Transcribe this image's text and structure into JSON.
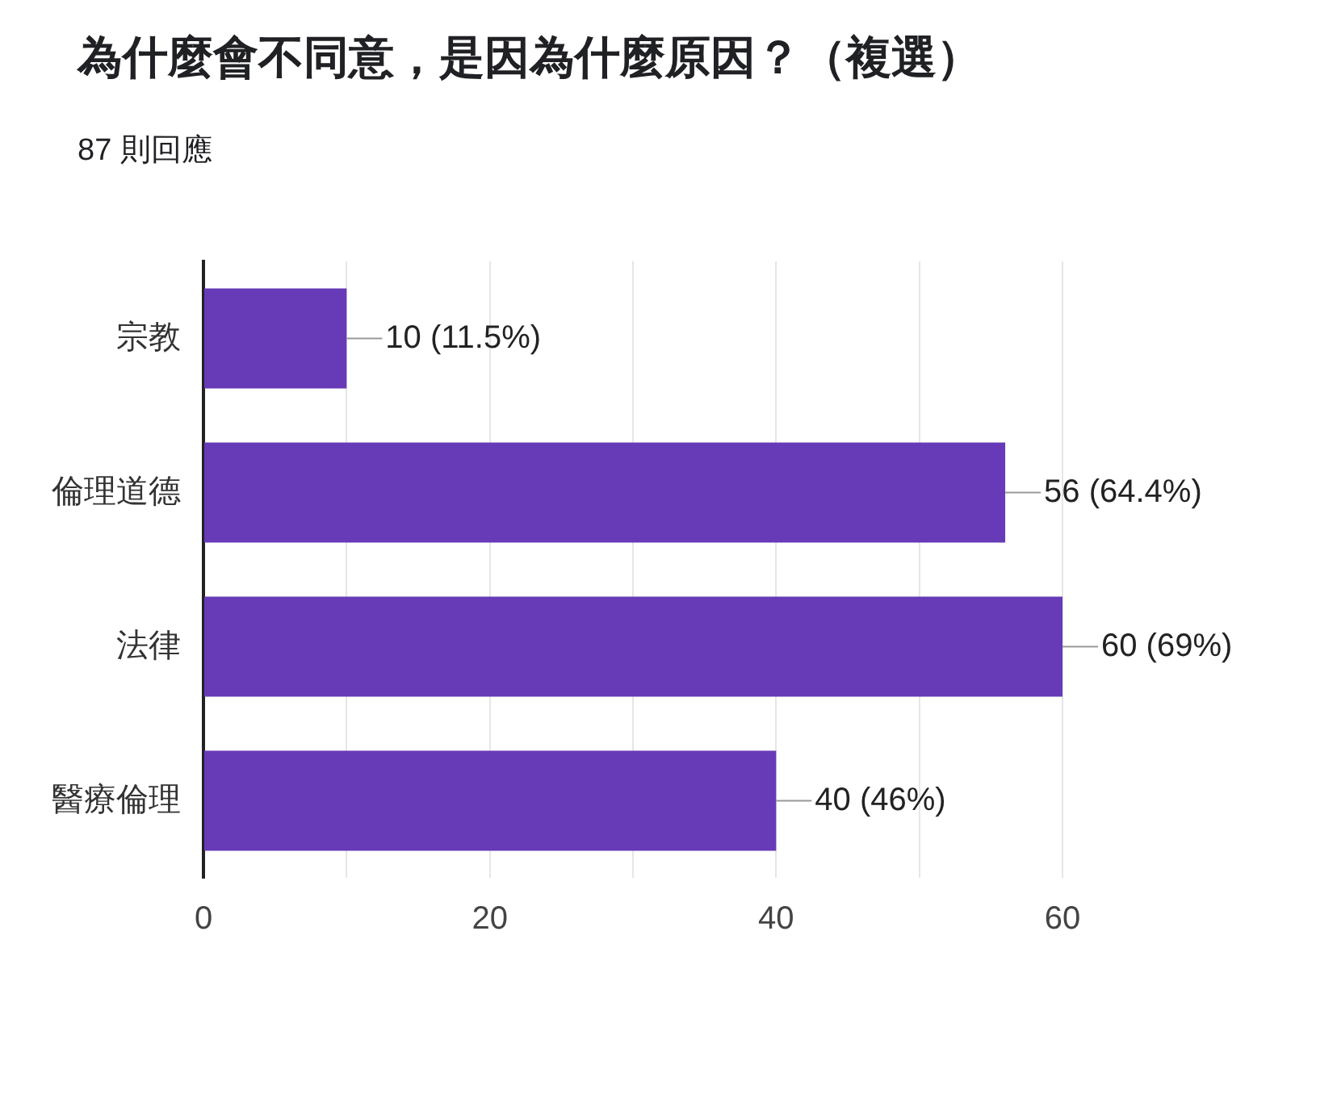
{
  "chart_data": {
    "type": "bar",
    "orientation": "horizontal",
    "title": "為什麼會不同意，是因為什麼原因？（複選）",
    "subtitle": "87 則回應",
    "categories": [
      "宗教",
      "倫理道德",
      "法律",
      "醫療倫理"
    ],
    "values": [
      10,
      56,
      60,
      40
    ],
    "color": "#673ab7",
    "value_labels": [
      "10 (11.5%)",
      "56 (64.4%)",
      "60 (69%)",
      "40 (46%)"
    ],
    "xlim": [
      0,
      60
    ],
    "xticks": [
      0,
      {
        "value": 10,
        "label": null
      },
      20,
      {
        "value": 30,
        "label": null
      },
      40,
      {
        "value": 50,
        "label": null
      },
      60
    ],
    "grid": "x",
    "legend": false
  }
}
